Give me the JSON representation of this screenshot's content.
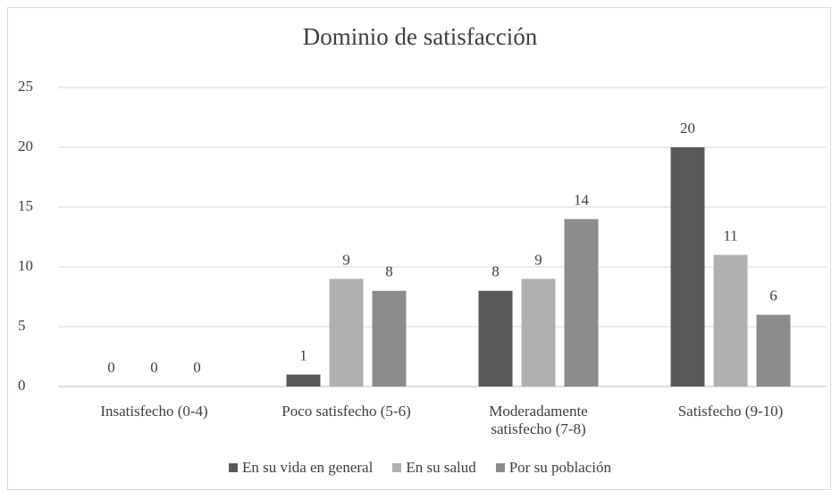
{
  "chart_data": {
    "type": "bar",
    "title": "Dominio de satisfacción",
    "categories": [
      "Insatisfecho (0-4)",
      "Poco satisfecho (5-6)",
      "Moderadamente satisfecho (7-8)",
      "Satisfecho (9-10)"
    ],
    "series": [
      {
        "name": "En su vida en general",
        "color": "#595959",
        "values": [
          0,
          1,
          8,
          20
        ]
      },
      {
        "name": "En su salud",
        "color": "#b0b0b0",
        "values": [
          0,
          9,
          9,
          11
        ]
      },
      {
        "name": "Por su población",
        "color": "#8c8c8c",
        "values": [
          0,
          8,
          14,
          6
        ]
      }
    ],
    "ylim": [
      0,
      25
    ],
    "yticks": [
      0,
      5,
      10,
      15,
      20,
      25
    ],
    "grid": true,
    "legend": "bottom",
    "data_labels": true
  }
}
